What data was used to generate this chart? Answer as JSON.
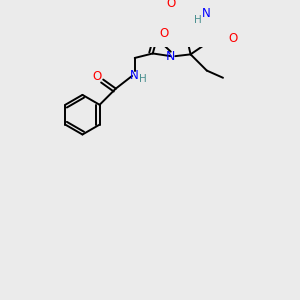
{
  "bg_color": "#ebebeb",
  "atom_colors": {
    "N": "#0000ff",
    "O": "#ff0000",
    "H": "#4a9090",
    "C": "#000000"
  },
  "bond_color": "#000000",
  "figsize": [
    3.0,
    3.0
  ],
  "dpi": 100
}
